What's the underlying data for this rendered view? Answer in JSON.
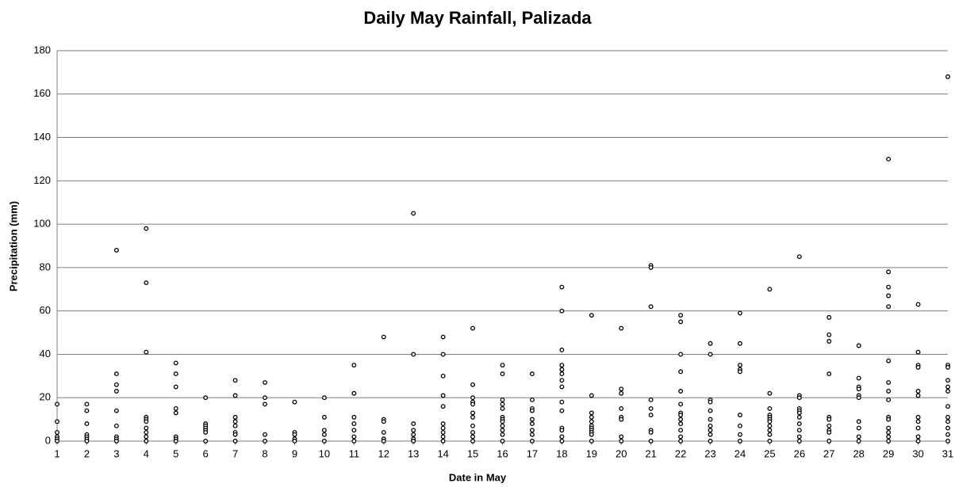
{
  "chart_data": {
    "type": "scatter",
    "title": "Daily May Rainfall, Palizada",
    "x_label": "Date in May",
    "y_label": "Precipitation (mm)",
    "color": "#000000",
    "grid": true,
    "xlim": [
      1,
      31
    ],
    "xticks": [
      1,
      2,
      3,
      4,
      5,
      6,
      7,
      8,
      9,
      10,
      11,
      12,
      13,
      14,
      15,
      16,
      17,
      18,
      19,
      20,
      21,
      22,
      23,
      24,
      25,
      26,
      27,
      28,
      29,
      30,
      31
    ],
    "ylim": [
      0,
      180
    ],
    "yticks": [
      0,
      20,
      40,
      60,
      80,
      100,
      120,
      140,
      160,
      180
    ],
    "x": [
      1,
      1,
      1,
      1,
      1,
      1,
      2,
      2,
      2,
      2,
      2,
      2,
      2,
      3,
      3,
      3,
      3,
      3,
      3,
      3,
      3,
      3,
      4,
      4,
      4,
      4,
      4,
      4,
      4,
      4,
      4,
      4,
      5,
      5,
      5,
      5,
      5,
      5,
      5,
      5,
      6,
      6,
      6,
      6,
      6,
      6,
      6,
      7,
      7,
      7,
      7,
      7,
      7,
      7,
      7,
      8,
      8,
      8,
      8,
      8,
      9,
      9,
      9,
      9,
      9,
      10,
      10,
      10,
      10,
      10,
      11,
      11,
      11,
      11,
      11,
      11,
      11,
      12,
      12,
      12,
      12,
      12,
      12,
      13,
      13,
      13,
      13,
      13,
      13,
      13,
      14,
      14,
      14,
      14,
      14,
      14,
      14,
      14,
      14,
      14,
      15,
      15,
      15,
      15,
      15,
      15,
      15,
      15,
      15,
      15,
      15,
      16,
      16,
      16,
      16,
      16,
      16,
      16,
      16,
      16,
      16,
      16,
      16,
      17,
      17,
      17,
      17,
      17,
      17,
      17,
      17,
      17,
      18,
      18,
      18,
      18,
      18,
      18,
      18,
      18,
      18,
      18,
      18,
      18,
      18,
      18,
      19,
      19,
      19,
      19,
      19,
      19,
      19,
      19,
      19,
      19,
      19,
      20,
      20,
      20,
      20,
      20,
      20,
      20,
      20,
      21,
      21,
      21,
      21,
      21,
      21,
      21,
      21,
      21,
      22,
      22,
      22,
      22,
      22,
      22,
      22,
      22,
      22,
      22,
      22,
      22,
      22,
      23,
      23,
      23,
      23,
      23,
      23,
      23,
      23,
      23,
      23,
      24,
      24,
      24,
      24,
      24,
      24,
      24,
      24,
      24,
      25,
      25,
      25,
      25,
      25,
      25,
      25,
      25,
      25,
      25,
      25,
      26,
      26,
      26,
      26,
      26,
      26,
      26,
      26,
      26,
      26,
      26,
      27,
      27,
      27,
      27,
      27,
      27,
      27,
      27,
      27,
      27,
      28,
      28,
      28,
      28,
      28,
      28,
      28,
      28,
      28,
      28,
      29,
      29,
      29,
      29,
      29,
      29,
      29,
      29,
      29,
      29,
      29,
      29,
      29,
      29,
      29,
      30,
      30,
      30,
      30,
      30,
      30,
      30,
      30,
      30,
      30,
      30,
      31,
      31,
      31,
      31,
      31,
      31,
      31,
      31,
      31,
      31,
      31,
      31
    ],
    "values": [
      17,
      9,
      4,
      2,
      1,
      0,
      17,
      14,
      8,
      3,
      2,
      1,
      0,
      88,
      31,
      26,
      23,
      14,
      7,
      2,
      1,
      0,
      98,
      73,
      41,
      11,
      10,
      9,
      6,
      4,
      2,
      0,
      36,
      31,
      25,
      15,
      13,
      2,
      1,
      0,
      20,
      8,
      7,
      6,
      5,
      4,
      0,
      28,
      21,
      11,
      9,
      7,
      4,
      3,
      0,
      27,
      20,
      17,
      3,
      0,
      18,
      4,
      3,
      1,
      0,
      20,
      11,
      5,
      3,
      0,
      35,
      22,
      11,
      8,
      5,
      2,
      0,
      48,
      10,
      9,
      4,
      1,
      0,
      105,
      40,
      8,
      5,
      3,
      1,
      0,
      48,
      40,
      30,
      21,
      16,
      8,
      6,
      4,
      2,
      0,
      52,
      26,
      20,
      18,
      17,
      13,
      11,
      7,
      4,
      2,
      0,
      35,
      31,
      19,
      17,
      15,
      11,
      10,
      9,
      7,
      5,
      3,
      0,
      31,
      19,
      15,
      14,
      10,
      8,
      5,
      3,
      0,
      71,
      60,
      42,
      35,
      33,
      31,
      28,
      25,
      18,
      14,
      6,
      5,
      2,
      0,
      58,
      21,
      13,
      11,
      9,
      7,
      6,
      5,
      4,
      3,
      0,
      52,
      24,
      22,
      15,
      11,
      10,
      2,
      0,
      81,
      80,
      62,
      19,
      15,
      12,
      5,
      4,
      0,
      58,
      55,
      40,
      32,
      23,
      17,
      13,
      12,
      10,
      8,
      5,
      2,
      0,
      45,
      40,
      19,
      18,
      14,
      10,
      7,
      5,
      3,
      0,
      59,
      45,
      35,
      33,
      32,
      12,
      7,
      3,
      0,
      70,
      22,
      15,
      12,
      11,
      10,
      9,
      7,
      5,
      3,
      0,
      85,
      21,
      20,
      15,
      14,
      13,
      11,
      8,
      5,
      2,
      0,
      57,
      49,
      46,
      31,
      11,
      10,
      7,
      5,
      4,
      0,
      44,
      29,
      25,
      24,
      21,
      20,
      9,
      6,
      2,
      0,
      130,
      78,
      71,
      67,
      62,
      37,
      27,
      23,
      19,
      11,
      10,
      6,
      4,
      2,
      0,
      63,
      41,
      35,
      34,
      23,
      21,
      11,
      9,
      6,
      2,
      0,
      168,
      35,
      34,
      28,
      25,
      23,
      16,
      11,
      9,
      6,
      3,
      0
    ]
  }
}
